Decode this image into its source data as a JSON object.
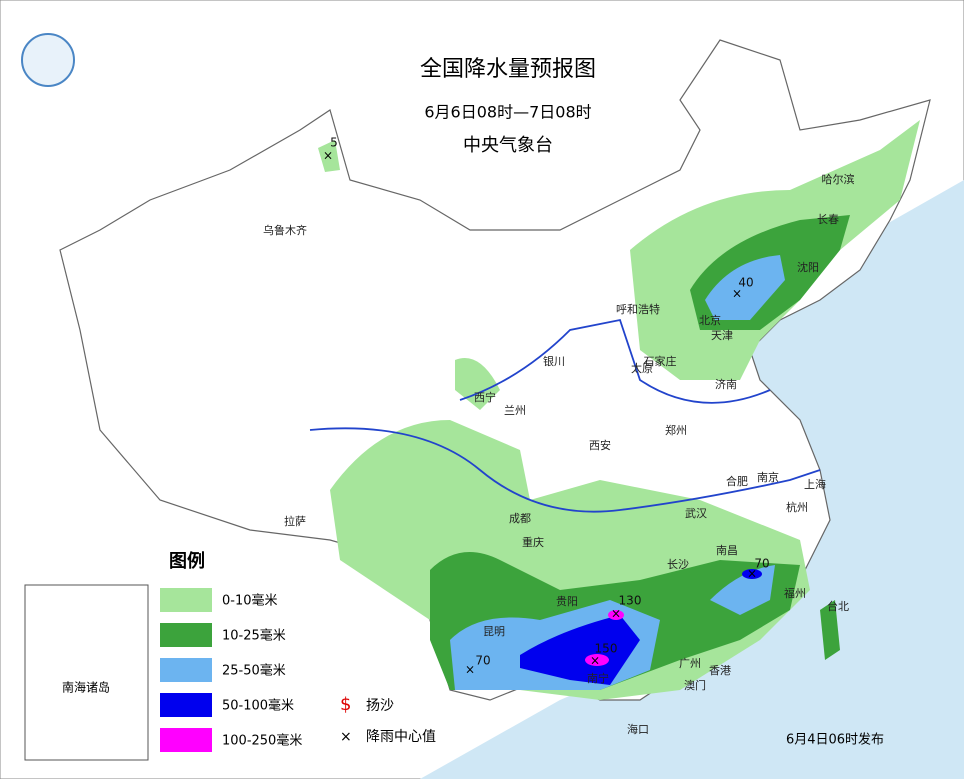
{
  "header": {
    "title": "全国降水量预报图",
    "period": "6月6日08时—7日08时",
    "issuer": "中央气象台"
  },
  "legend": {
    "title": "图例",
    "items": [
      "0-10毫米",
      "10-25毫米",
      "25-50毫米",
      "50-100毫米",
      "100-250毫米"
    ],
    "dust": "扬沙",
    "center": "降雨中心值"
  },
  "inset": "南海诸岛",
  "footer": "6月4日06时发布",
  "cities": [
    "乌鲁木齐",
    "哈尔滨",
    "长春",
    "沈阳",
    "呼和浩特",
    "北京",
    "天津",
    "石家庄",
    "银川",
    "太原",
    "济南",
    "西宁",
    "兰州",
    "郑州",
    "西安",
    "合肥",
    "南京",
    "上海",
    "拉萨",
    "成都",
    "武汉",
    "杭州",
    "重庆",
    "南昌",
    "长沙",
    "福州",
    "台北",
    "贵阳",
    "昆明",
    "南宁",
    "广州",
    "香港",
    "澳门",
    "海口"
  ],
  "centers": [
    "5",
    "40",
    "70",
    "130",
    "150",
    "70"
  ]
}
